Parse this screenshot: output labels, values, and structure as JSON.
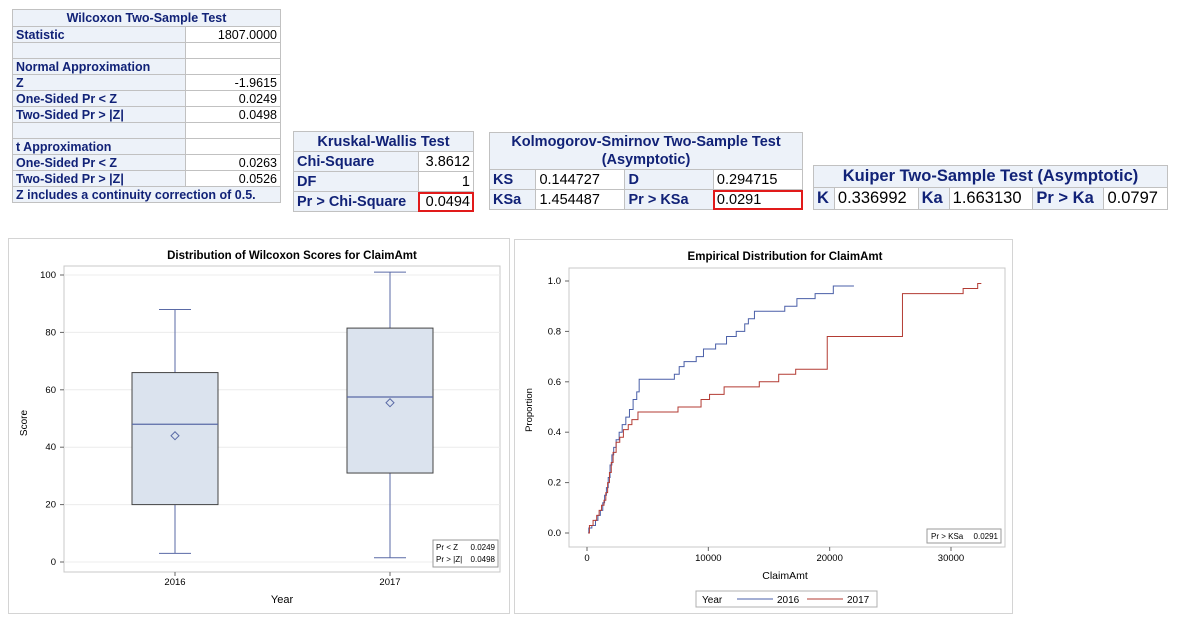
{
  "wilcoxon": {
    "title": "Wilcoxon Two-Sample Test",
    "rows": [
      {
        "label": "Statistic",
        "value": "1807.0000"
      },
      {
        "label": "",
        "value": ""
      },
      {
        "label": "Normal Approximation",
        "value": ""
      },
      {
        "label": "Z",
        "value": "-1.9615"
      },
      {
        "label": "One-Sided Pr <  Z",
        "value": "0.0249"
      },
      {
        "label": "Two-Sided Pr > |Z|",
        "value": "0.0498"
      },
      {
        "label": "",
        "value": ""
      },
      {
        "label": "t Approximation",
        "value": ""
      },
      {
        "label": "One-Sided Pr <  Z",
        "value": "0.0263"
      },
      {
        "label": "Two-Sided Pr > |Z|",
        "value": "0.0526"
      }
    ],
    "footnote": "Z includes a continuity correction of 0.5."
  },
  "kruskal": {
    "title": "Kruskal-Wallis Test",
    "rows": [
      {
        "label": "Chi-Square",
        "value": "3.8612"
      },
      {
        "label": "DF",
        "value": "1"
      },
      {
        "label": "Pr > Chi-Square",
        "value": "0.0494"
      }
    ]
  },
  "ks": {
    "title_line1": "Kolmogorov-Smirnov Two-Sample Test",
    "title_line2": "(Asymptotic)",
    "rows": [
      {
        "l1": "KS",
        "v1": "0.144727",
        "l2": "D",
        "v2": "0.294715"
      },
      {
        "l1": "KSa",
        "v1": "1.454487",
        "l2": "Pr > KSa",
        "v2": "0.0291"
      }
    ]
  },
  "kuiper": {
    "title": "Kuiper Two-Sample Test (Asymptotic)",
    "k_label": "K",
    "k_value": "0.336992",
    "ka_label": "Ka",
    "ka_value": "1.663130",
    "p_label": "Pr > Ka",
    "p_value": "0.0797"
  },
  "colors": {
    "header_bg": "#edf2f9",
    "header_text": "#112277",
    "highlight": "#e11a1a",
    "box_fill": "#dbe3ee",
    "box_stroke": "#5a6aa6",
    "series_2016": "#4a5fa8",
    "series_2017": "#b33b33"
  },
  "chart_data": [
    {
      "type": "box",
      "title": "Distribution of Wilcoxon Scores for ClaimAmt",
      "xlabel": "Year",
      "ylabel": "Score",
      "categories": [
        "2016",
        "2017"
      ],
      "boxes": [
        {
          "min": 3,
          "q1": 20,
          "median": 48,
          "q3": 66,
          "max": 88,
          "mean": 44
        },
        {
          "min": 1.5,
          "q1": 31,
          "median": 57.5,
          "q3": 81.5,
          "max": 101,
          "mean": 55.5
        }
      ],
      "ylim": [
        0,
        100
      ],
      "yticks": [
        0,
        20,
        40,
        60,
        80,
        100
      ],
      "grid": true,
      "inset": [
        {
          "label": "Pr < Z",
          "value": "0.0249"
        },
        {
          "label": "Pr > |Z|",
          "value": "0.0498"
        }
      ]
    },
    {
      "type": "line",
      "title": "Empirical Distribution for ClaimAmt",
      "xlabel": "ClaimAmt",
      "ylabel": "Proportion",
      "xlim": [
        0,
        33000
      ],
      "xticks": [
        0,
        10000,
        20000,
        30000
      ],
      "ylim": [
        0,
        1
      ],
      "yticks": [
        "0.0",
        "0.2",
        "0.4",
        "0.6",
        "0.8",
        "1.0"
      ],
      "inset": {
        "label": "Pr > KSa",
        "value": "0.0291"
      },
      "legend": {
        "title": "Year",
        "position": "bottom"
      },
      "series": [
        {
          "name": "2016",
          "points": [
            [
              100,
              0.0
            ],
            [
              150,
              0.02
            ],
            [
              400,
              0.03
            ],
            [
              700,
              0.05
            ],
            [
              900,
              0.07
            ],
            [
              1100,
              0.09
            ],
            [
              1300,
              0.12
            ],
            [
              1450,
              0.15
            ],
            [
              1600,
              0.18
            ],
            [
              1750,
              0.22
            ],
            [
              1900,
              0.27
            ],
            [
              2050,
              0.31
            ],
            [
              2200,
              0.34
            ],
            [
              2400,
              0.37
            ],
            [
              2650,
              0.4
            ],
            [
              2900,
              0.43
            ],
            [
              3200,
              0.46
            ],
            [
              3500,
              0.49
            ],
            [
              3800,
              0.53
            ],
            [
              4100,
              0.56
            ],
            [
              4300,
              0.61
            ],
            [
              7200,
              0.63
            ],
            [
              7600,
              0.66
            ],
            [
              8000,
              0.68
            ],
            [
              9000,
              0.7
            ],
            [
              9600,
              0.73
            ],
            [
              10600,
              0.75
            ],
            [
              11500,
              0.78
            ],
            [
              12300,
              0.8
            ],
            [
              13000,
              0.83
            ],
            [
              13300,
              0.85
            ],
            [
              13800,
              0.88
            ],
            [
              16300,
              0.9
            ],
            [
              17300,
              0.93
            ],
            [
              18800,
              0.95
            ],
            [
              20300,
              0.98
            ],
            [
              22000,
              0.98
            ]
          ]
        },
        {
          "name": "2017",
          "points": [
            [
              100,
              0.0
            ],
            [
              200,
              0.03
            ],
            [
              500,
              0.05
            ],
            [
              800,
              0.07
            ],
            [
              1000,
              0.09
            ],
            [
              1200,
              0.11
            ],
            [
              1400,
              0.13
            ],
            [
              1550,
              0.16
            ],
            [
              1700,
              0.2
            ],
            [
              1850,
              0.24
            ],
            [
              2000,
              0.28
            ],
            [
              2150,
              0.32
            ],
            [
              2400,
              0.36
            ],
            [
              2700,
              0.38
            ],
            [
              3000,
              0.41
            ],
            [
              3400,
              0.43
            ],
            [
              3700,
              0.45
            ],
            [
              4200,
              0.48
            ],
            [
              7500,
              0.5
            ],
            [
              9400,
              0.53
            ],
            [
              10100,
              0.55
            ],
            [
              11300,
              0.58
            ],
            [
              14200,
              0.6
            ],
            [
              15800,
              0.63
            ],
            [
              17200,
              0.65
            ],
            [
              19800,
              0.78
            ],
            [
              26000,
              0.95
            ],
            [
              31000,
              0.97
            ],
            [
              32200,
              0.99
            ],
            [
              32500,
              0.99
            ]
          ]
        }
      ]
    }
  ]
}
